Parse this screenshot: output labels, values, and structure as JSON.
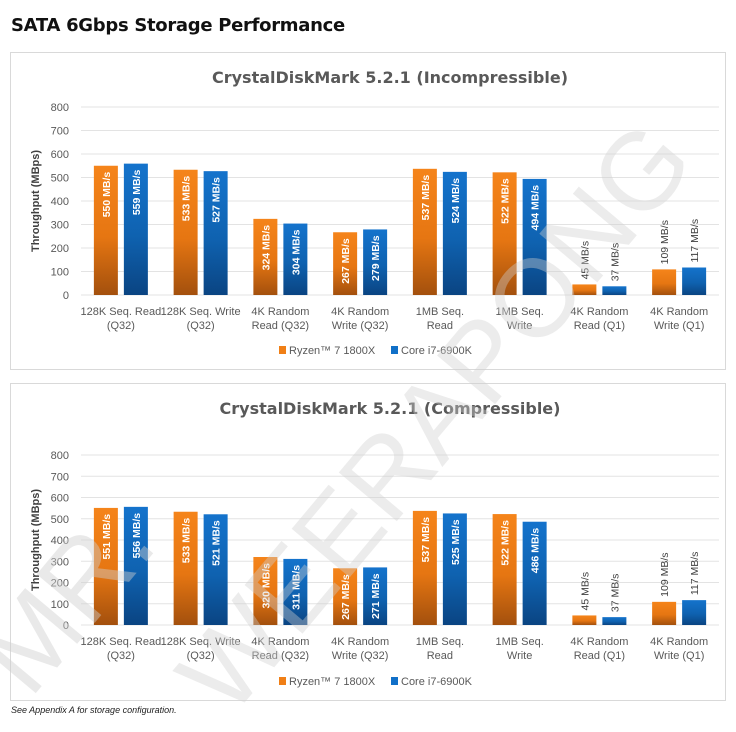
{
  "page": {
    "title": "SATA 6Gbps Storage Performance",
    "footnote": "See Appendix A for storage configuration.",
    "watermark": "MR. WEERAPONG"
  },
  "colors": {
    "ryzen": "#f07f16",
    "ryzen_dark": "#a8520e",
    "intel": "#1170c8",
    "intel_dark": "#0a4b8a"
  },
  "chart_data": [
    {
      "type": "bar",
      "title": "CrystalDiskMark 5.2.1 (Incompressible)",
      "xlabel": "",
      "ylabel": "Throughput (MBps)",
      "ylim": [
        0,
        800
      ],
      "yticks": [
        0,
        100,
        200,
        300,
        400,
        500,
        600,
        700,
        800
      ],
      "grid": true,
      "legend_position": "bottom",
      "categories": [
        [
          "128K Seq. Read",
          "(Q32)"
        ],
        [
          "128K Seq. Write",
          "(Q32)"
        ],
        [
          "4K Random",
          "Read (Q32)"
        ],
        [
          "4K Random",
          "Write (Q32)"
        ],
        [
          "1MB Seq.",
          "Read"
        ],
        [
          "1MB Seq.",
          "Write"
        ],
        [
          "4K Random",
          "Read (Q1)"
        ],
        [
          "4K Random",
          "Write (Q1)"
        ]
      ],
      "series": [
        {
          "name": "Ryzen™ 7 1800X",
          "values": [
            550,
            533,
            324,
            267,
            537,
            522,
            45,
            109
          ],
          "labels": [
            "550 MB/s",
            "533 MB/s",
            "324 MB/s",
            "267 MB/s",
            "537 MB/s",
            "522 MB/s",
            "45 MB/s",
            "109 MB/s"
          ]
        },
        {
          "name": "Core i7-6900K",
          "values": [
            559,
            527,
            304,
            279,
            524,
            494,
            37,
            117
          ],
          "labels": [
            "559 MB/s",
            "527 MB/s",
            "304 MB/s",
            "279 MB/s",
            "524 MB/s",
            "494 MB/s",
            "37 MB/s",
            "117 MB/s"
          ]
        }
      ]
    },
    {
      "type": "bar",
      "title": "CrystalDiskMark 5.2.1 (Compressible)",
      "xlabel": "",
      "ylabel": "Throughput (MBps)",
      "ylim": [
        0,
        800
      ],
      "yticks": [
        0,
        100,
        200,
        300,
        400,
        500,
        600,
        700,
        800
      ],
      "grid": true,
      "legend_position": "bottom",
      "categories": [
        [
          "128K Seq. Read",
          "(Q32)"
        ],
        [
          "128K Seq. Write",
          "(Q32)"
        ],
        [
          "4K Random",
          "Read (Q32)"
        ],
        [
          "4K Random",
          "Write (Q32)"
        ],
        [
          "1MB Seq.",
          "Read"
        ],
        [
          "1MB Seq.",
          "Write"
        ],
        [
          "4K Random",
          "Read (Q1)"
        ],
        [
          "4K Random",
          "Write (Q1)"
        ]
      ],
      "series": [
        {
          "name": "Ryzen™ 7 1800X",
          "values": [
            551,
            533,
            320,
            267,
            537,
            522,
            45,
            109
          ],
          "labels": [
            "551 MB/s",
            "533 MB/s",
            "320 MB/s",
            "267 MB/s",
            "537 MB/s",
            "522 MB/s",
            "45 MB/s",
            "109 MB/s"
          ]
        },
        {
          "name": "Core i7-6900K",
          "values": [
            556,
            521,
            311,
            271,
            525,
            486,
            37,
            117
          ],
          "labels": [
            "556 MB/s",
            "521 MB/s",
            "311 MB/s",
            "271 MB/s",
            "525 MB/s",
            "486 MB/s",
            "37 MB/s",
            "117 MB/s"
          ]
        }
      ]
    }
  ]
}
